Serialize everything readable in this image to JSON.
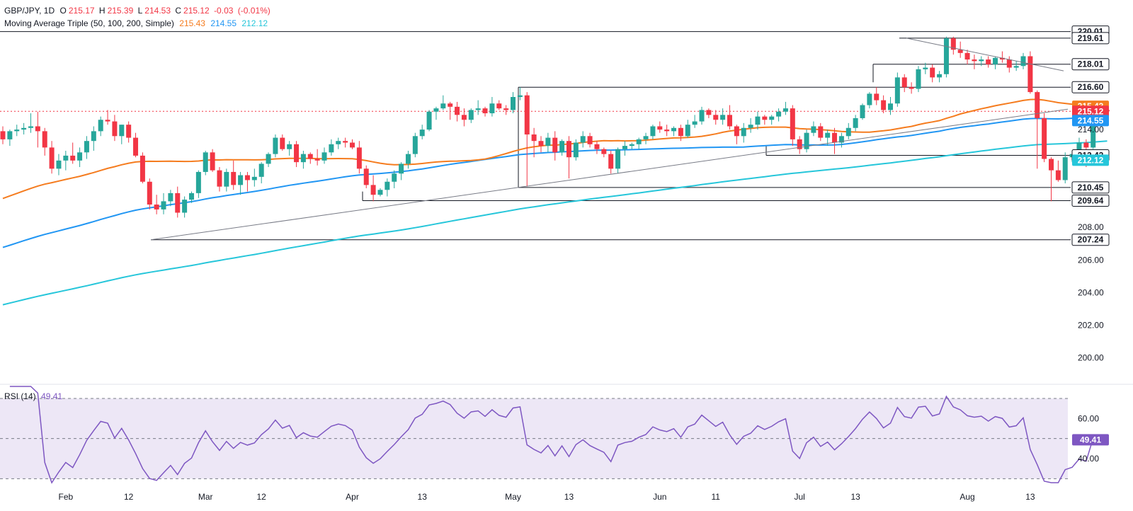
{
  "header": {
    "symbol": "GBP/JPY, 1D",
    "open_label": "O",
    "open": "215.17",
    "high_label": "H",
    "high": "215.39",
    "low_label": "L",
    "low": "214.53",
    "close_label": "C",
    "close": "215.12",
    "change": "-0.03",
    "change_pct": "(-0.01%)",
    "ma_title": "Moving Average Triple (50, 100, 200, Simple)",
    "ma50": "215.43",
    "ma100": "214.55",
    "ma200": "212.12"
  },
  "rsi_header": {
    "title": "RSI (14)",
    "value": "49.41"
  },
  "colors": {
    "up": "#26a69a",
    "down": "#f23645",
    "ma50": "#f57c1f",
    "ma100": "#2196f3",
    "ma200": "#26c6da",
    "rsi": "#7e57c2",
    "rsi_band": "#ede7f6"
  },
  "chart_data": {
    "type": "line",
    "x_ticks": [
      "Feb",
      "12",
      "Mar",
      "12",
      "Apr",
      "13",
      "May",
      "13",
      "Jun",
      "11",
      "Jul",
      "13",
      "Aug",
      "13"
    ],
    "ylim": [
      198.5,
      220.3
    ],
    "y_ticks": [
      "200.00",
      "202.00",
      "204.00",
      "206.00",
      "208.00",
      "214.00"
    ],
    "levels": [
      {
        "value": 220.01,
        "label": "220.01",
        "style": "horizontal"
      },
      {
        "value": 219.61,
        "label": "219.61",
        "style": "box"
      },
      {
        "value": 218.01,
        "label": "218.01",
        "style": "box"
      },
      {
        "value": 216.6,
        "label": "216.60",
        "style": "box"
      },
      {
        "value": 212.42,
        "label": "212.42",
        "style": "box"
      },
      {
        "value": 210.45,
        "label": "210.45",
        "style": "box"
      },
      {
        "value": 209.64,
        "label": "209.64",
        "style": "box"
      },
      {
        "value": 207.24,
        "label": "207.24",
        "style": "box"
      }
    ],
    "price_tags": [
      {
        "value": 215.43,
        "label": "215.43",
        "color": "#f57c1f"
      },
      {
        "value": 215.12,
        "label": "215.12",
        "color": "#f23645"
      },
      {
        "value": 214.55,
        "label": "214.55",
        "color": "#2196f3"
      },
      {
        "value": 212.12,
        "label": "212.12",
        "color": "#26c6da"
      }
    ],
    "candles": [
      [
        213.9,
        214.2,
        213.1,
        213.4
      ],
      [
        213.4,
        214.0,
        213.0,
        213.9
      ],
      [
        213.9,
        214.3,
        213.6,
        214.0
      ],
      [
        214.0,
        214.4,
        213.7,
        214.1
      ],
      [
        214.1,
        215.0,
        213.8,
        214.2
      ],
      [
        214.2,
        215.1,
        212.9,
        213.9
      ],
      [
        213.9,
        214.1,
        212.4,
        212.9
      ],
      [
        212.9,
        213.3,
        211.3,
        211.6
      ],
      [
        211.6,
        212.5,
        211.2,
        212.1
      ],
      [
        212.1,
        212.7,
        211.5,
        212.4
      ],
      [
        212.4,
        213.2,
        211.9,
        212.1
      ],
      [
        212.1,
        212.9,
        211.7,
        212.6
      ],
      [
        212.6,
        213.6,
        212.2,
        213.3
      ],
      [
        213.3,
        214.2,
        212.7,
        213.9
      ],
      [
        213.9,
        214.8,
        213.6,
        214.6
      ],
      [
        214.6,
        215.2,
        214.3,
        214.5
      ],
      [
        214.5,
        214.9,
        213.3,
        213.6
      ],
      [
        213.6,
        214.3,
        213.1,
        214.3
      ],
      [
        214.3,
        214.5,
        213.2,
        213.5
      ],
      [
        213.5,
        213.8,
        212.3,
        212.4
      ],
      [
        212.4,
        212.6,
        210.7,
        210.8
      ],
      [
        210.8,
        211.0,
        209.1,
        209.4
      ],
      [
        209.4,
        210.0,
        208.8,
        209.1
      ],
      [
        209.1,
        210.1,
        208.8,
        209.6
      ],
      [
        209.6,
        210.3,
        209.3,
        210.1
      ],
      [
        210.1,
        210.5,
        208.6,
        208.9
      ],
      [
        208.9,
        209.9,
        208.6,
        209.7
      ],
      [
        209.7,
        210.2,
        209.5,
        210.1
      ],
      [
        210.1,
        211.5,
        209.8,
        211.4
      ],
      [
        211.4,
        212.7,
        211.2,
        212.6
      ],
      [
        212.6,
        212.8,
        211.4,
        211.5
      ],
      [
        211.5,
        211.7,
        210.2,
        210.5
      ],
      [
        210.5,
        211.6,
        210.2,
        211.4
      ],
      [
        211.4,
        212.1,
        210.3,
        210.6
      ],
      [
        210.6,
        211.4,
        210.0,
        211.2
      ],
      [
        211.2,
        211.4,
        210.2,
        210.9
      ],
      [
        210.9,
        211.6,
        210.5,
        211.1
      ],
      [
        211.1,
        212.0,
        210.7,
        211.9
      ],
      [
        211.9,
        212.6,
        211.7,
        212.5
      ],
      [
        212.5,
        213.7,
        212.3,
        213.5
      ],
      [
        213.5,
        213.7,
        212.7,
        212.8
      ],
      [
        212.8,
        213.3,
        212.4,
        213.1
      ],
      [
        213.1,
        213.3,
        211.7,
        212.0
      ],
      [
        212.0,
        212.7,
        211.6,
        212.5
      ],
      [
        212.5,
        212.6,
        211.9,
        212.2
      ],
      [
        212.2,
        212.8,
        211.8,
        212.1
      ],
      [
        212.1,
        212.9,
        211.9,
        212.6
      ],
      [
        212.6,
        213.4,
        212.4,
        213.1
      ],
      [
        213.1,
        213.5,
        212.8,
        213.3
      ],
      [
        213.3,
        213.5,
        212.9,
        213.2
      ],
      [
        213.2,
        213.4,
        212.8,
        212.9
      ],
      [
        212.9,
        213.3,
        211.3,
        211.6
      ],
      [
        211.6,
        211.8,
        210.4,
        210.6
      ],
      [
        210.6,
        211.2,
        209.6,
        210.0
      ],
      [
        210.0,
        210.4,
        209.9,
        210.3
      ],
      [
        210.3,
        211.0,
        209.9,
        210.8
      ],
      [
        210.8,
        211.5,
        210.4,
        211.3
      ],
      [
        211.3,
        212.0,
        210.9,
        211.9
      ],
      [
        211.9,
        212.7,
        211.6,
        212.5
      ],
      [
        212.5,
        213.8,
        212.3,
        213.6
      ],
      [
        213.6,
        214.3,
        213.4,
        214.0
      ],
      [
        214.0,
        215.2,
        213.9,
        215.1
      ],
      [
        215.1,
        215.4,
        214.6,
        215.3
      ],
      [
        215.3,
        216.1,
        215.2,
        215.6
      ],
      [
        215.6,
        215.7,
        214.6,
        215.4
      ],
      [
        215.4,
        215.7,
        214.5,
        214.9
      ],
      [
        214.9,
        215.3,
        214.2,
        214.6
      ],
      [
        214.6,
        215.3,
        214.4,
        215.2
      ],
      [
        215.2,
        215.8,
        214.9,
        215.3
      ],
      [
        215.3,
        215.4,
        214.8,
        215.0
      ],
      [
        215.0,
        216.0,
        214.8,
        215.6
      ],
      [
        215.6,
        215.8,
        215.2,
        215.3
      ],
      [
        215.3,
        215.5,
        214.9,
        215.2
      ],
      [
        215.2,
        216.3,
        215.0,
        216.0
      ],
      [
        216.0,
        216.6,
        215.8,
        216.1
      ],
      [
        216.1,
        216.3,
        210.5,
        213.7
      ],
      [
        213.7,
        214.1,
        212.3,
        213.3
      ],
      [
        213.3,
        213.6,
        212.6,
        213.0
      ],
      [
        213.0,
        213.8,
        212.6,
        213.5
      ],
      [
        213.5,
        213.9,
        212.1,
        212.6
      ],
      [
        212.6,
        213.4,
        212.4,
        213.3
      ],
      [
        213.3,
        213.6,
        211.0,
        212.3
      ],
      [
        212.3,
        213.4,
        212.1,
        213.2
      ],
      [
        213.2,
        213.9,
        212.9,
        213.6
      ],
      [
        213.6,
        213.8,
        212.9,
        213.1
      ],
      [
        213.1,
        213.3,
        212.5,
        212.8
      ],
      [
        212.8,
        212.9,
        212.3,
        212.5
      ],
      [
        212.5,
        212.7,
        211.3,
        211.6
      ],
      [
        211.6,
        212.9,
        211.3,
        212.8
      ],
      [
        212.8,
        213.3,
        212.4,
        213.0
      ],
      [
        213.0,
        213.2,
        212.8,
        213.1
      ],
      [
        213.1,
        213.5,
        212.8,
        213.4
      ],
      [
        213.4,
        213.8,
        213.1,
        213.6
      ],
      [
        213.6,
        214.3,
        213.4,
        214.2
      ],
      [
        214.2,
        214.5,
        213.8,
        214.0
      ],
      [
        214.0,
        214.3,
        213.6,
        213.9
      ],
      [
        213.9,
        214.2,
        213.6,
        214.1
      ],
      [
        214.1,
        214.3,
        213.3,
        213.6
      ],
      [
        213.6,
        214.6,
        213.5,
        214.3
      ],
      [
        214.3,
        214.9,
        214.1,
        214.5
      ],
      [
        214.5,
        215.4,
        214.3,
        215.2
      ],
      [
        215.2,
        215.3,
        214.7,
        214.9
      ],
      [
        214.9,
        215.2,
        214.3,
        214.6
      ],
      [
        214.6,
        215.3,
        214.3,
        214.9
      ],
      [
        214.9,
        215.5,
        214.0,
        214.2
      ],
      [
        214.2,
        214.3,
        213.1,
        213.6
      ],
      [
        213.6,
        214.4,
        213.2,
        214.1
      ],
      [
        214.1,
        214.7,
        213.8,
        214.3
      ],
      [
        214.3,
        215.1,
        214.0,
        214.8
      ],
      [
        214.8,
        214.9,
        214.3,
        214.6
      ],
      [
        214.6,
        214.9,
        214.3,
        214.8
      ],
      [
        214.8,
        215.3,
        214.5,
        215.1
      ],
      [
        215.1,
        215.7,
        214.9,
        215.3
      ],
      [
        215.3,
        215.5,
        213.0,
        213.4
      ],
      [
        213.4,
        213.6,
        212.5,
        212.8
      ],
      [
        212.8,
        214.0,
        212.6,
        213.8
      ],
      [
        213.8,
        214.5,
        213.6,
        214.2
      ],
      [
        214.2,
        214.4,
        213.3,
        213.5
      ],
      [
        213.5,
        214.0,
        213.0,
        213.8
      ],
      [
        213.8,
        214.1,
        212.5,
        213.2
      ],
      [
        213.2,
        213.8,
        212.9,
        213.6
      ],
      [
        213.6,
        214.4,
        213.4,
        214.1
      ],
      [
        214.1,
        214.9,
        213.9,
        214.7
      ],
      [
        214.7,
        215.6,
        214.6,
        215.5
      ],
      [
        215.5,
        216.3,
        215.3,
        216.2
      ],
      [
        216.2,
        216.6,
        215.5,
        215.8
      ],
      [
        215.8,
        216.1,
        215.0,
        215.2
      ],
      [
        215.2,
        216.0,
        214.9,
        215.6
      ],
      [
        215.6,
        217.5,
        215.4,
        217.2
      ],
      [
        217.2,
        217.4,
        216.3,
        216.6
      ],
      [
        216.6,
        216.9,
        216.2,
        216.5
      ],
      [
        216.5,
        217.9,
        216.3,
        217.7
      ],
      [
        217.7,
        218.1,
        217.4,
        217.8
      ],
      [
        217.8,
        218.0,
        216.9,
        217.2
      ],
      [
        217.2,
        217.6,
        216.9,
        217.4
      ],
      [
        217.4,
        219.7,
        217.2,
        219.6
      ],
      [
        219.6,
        219.7,
        218.6,
        218.9
      ],
      [
        218.9,
        219.4,
        218.4,
        218.7
      ],
      [
        218.7,
        218.9,
        218.0,
        218.3
      ],
      [
        218.3,
        218.6,
        217.7,
        218.2
      ],
      [
        218.2,
        218.5,
        217.9,
        218.3
      ],
      [
        218.3,
        218.5,
        217.8,
        218.0
      ],
      [
        218.0,
        218.5,
        217.7,
        218.4
      ],
      [
        218.4,
        218.8,
        218.1,
        218.3
      ],
      [
        218.3,
        218.5,
        217.5,
        217.8
      ],
      [
        217.8,
        218.2,
        217.6,
        217.9
      ],
      [
        217.9,
        218.7,
        217.7,
        218.5
      ],
      [
        218.5,
        218.8,
        216.2,
        216.3
      ],
      [
        216.3,
        216.4,
        211.6,
        214.7
      ],
      [
        214.7,
        215.0,
        212.0,
        212.2
      ],
      [
        212.2,
        212.3,
        209.6,
        211.5
      ],
      [
        211.5,
        212.1,
        210.8,
        210.9
      ],
      [
        210.9,
        212.6,
        210.7,
        212.3
      ],
      [
        212.3,
        212.7,
        212.0,
        212.5
      ],
      [
        212.5,
        213.5,
        212.3,
        213.2
      ],
      [
        213.2,
        213.4,
        211.7,
        212.9
      ],
      [
        212.9,
        215.2,
        212.8,
        215.1
      ],
      [
        215.1,
        215.3,
        214.8,
        215.2
      ],
      [
        215.2,
        215.39,
        214.53,
        215.12
      ]
    ],
    "rsi_ylim": [
      28,
      76
    ],
    "rsi_ticks": [
      {
        "value": 60,
        "label": "60.00"
      },
      {
        "value": 40,
        "label": "40.00"
      }
    ],
    "rsi_levels": {
      "upper": 70,
      "middle": 50,
      "lower": 30
    },
    "rsi_value": {
      "value": 49.41,
      "label": "49.41"
    }
  }
}
